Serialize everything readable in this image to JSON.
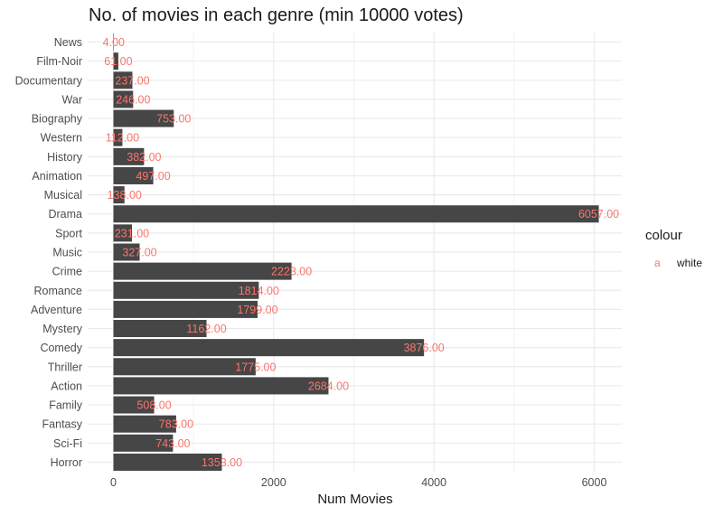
{
  "chart_data": {
    "type": "bar",
    "orientation": "horizontal",
    "title": "No. of movies in each genre (min 10000 votes)",
    "xlabel": "Num Movies",
    "ylabel": "",
    "xlim": [
      0,
      6340
    ],
    "xticks": [
      0,
      2000,
      4000,
      6000
    ],
    "grid": true,
    "legend_placement": "right",
    "categories": [
      "News",
      "Film-Noir",
      "Documentary",
      "War",
      "Biography",
      "Western",
      "History",
      "Animation",
      "Musical",
      "Drama",
      "Sport",
      "Music",
      "Crime",
      "Romance",
      "Adventure",
      "Mystery",
      "Comedy",
      "Thriller",
      "Action",
      "Family",
      "Fantasy",
      "Sci-Fi",
      "Horror"
    ],
    "values": [
      4,
      61,
      237,
      246,
      753,
      112,
      382,
      497,
      138,
      6057,
      231,
      327,
      2223,
      1814,
      1799,
      1162,
      3876,
      1775,
      2684,
      508,
      783,
      743,
      1353
    ],
    "value_labels": [
      "4.00",
      "61.00",
      "237.00",
      "246.00",
      "753.00",
      "112.00",
      "382.00",
      "497.00",
      "138.00",
      "6057.00",
      "231.00",
      "327.00",
      "2223.00",
      "1814.00",
      "1799.00",
      "1162.00",
      "3876.00",
      "1775.00",
      "2684.00",
      "508.00",
      "783.00",
      "743.00",
      "1353.00"
    ],
    "bar_color": "#464646",
    "label_color": "#f8766d",
    "grid_color": "#ebebeb"
  },
  "legend": {
    "title": "colour",
    "key_glyph": "a",
    "label": "white"
  }
}
